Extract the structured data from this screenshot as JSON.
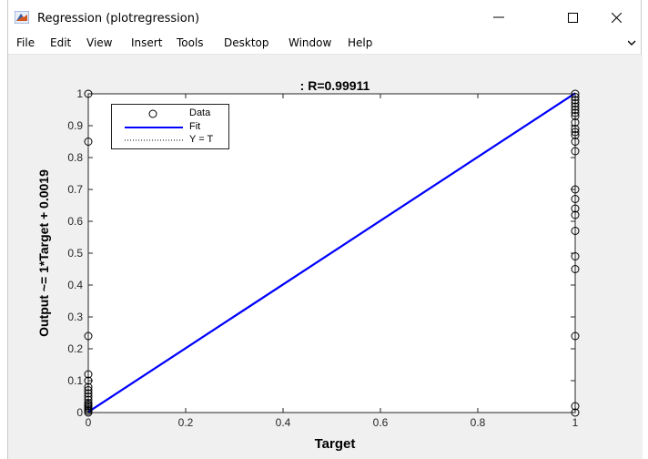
{
  "window": {
    "title": "Regression (plotregression)",
    "controls": {
      "minimize": "—",
      "maximize": "☐",
      "close": "✕"
    }
  },
  "menu": {
    "items": [
      "File",
      "Edit",
      "View",
      "Insert",
      "Tools",
      "Desktop",
      "Window",
      "Help"
    ]
  },
  "colors": {
    "fit_line": "#0000ff",
    "data_marker": "#000000",
    "axes_background": "#ffffff",
    "figure_background": "#f0f0f0"
  },
  "icons": {
    "app": "matlab-icon",
    "dock": "dock-arrow-icon"
  },
  "chart_data": {
    "type": "scatter",
    "title": ": R=0.99911",
    "xlabel": "Target",
    "ylabel": "Output ~= 1*Target + 0.0019",
    "xlim": [
      0,
      1
    ],
    "ylim": [
      0,
      1
    ],
    "xticks": [
      0,
      0.2,
      0.4,
      0.6,
      0.8,
      1
    ],
    "xtick_labels": [
      "0",
      "0.2",
      "0.4",
      "0.6",
      "0.8",
      "1"
    ],
    "yticks": [
      0,
      0.1,
      0.2,
      0.3,
      0.4,
      0.5,
      0.6,
      0.7,
      0.8,
      0.9,
      1
    ],
    "ytick_labels": [
      "0",
      "0.1",
      "0.2",
      "0.3",
      "0.4",
      "0.5",
      "0.6",
      "0.7",
      "0.8",
      "0.9",
      "1"
    ],
    "grid": false,
    "legend_position": "top-left",
    "legend": [
      {
        "label": "Data",
        "style": "circle-marker"
      },
      {
        "label": "Fit",
        "style": "solid-line"
      },
      {
        "label": "Y = T",
        "style": "dotted-line"
      }
    ],
    "fit_line": {
      "slope": 1,
      "intercept": 0.0019
    },
    "identity_line": {
      "slope": 1,
      "intercept": 0
    },
    "series": [
      {
        "name": "Data",
        "points": [
          [
            0,
            0
          ],
          [
            0,
            0.005
          ],
          [
            0,
            0.01
          ],
          [
            0,
            0.015
          ],
          [
            0,
            0.02
          ],
          [
            0,
            0.025
          ],
          [
            0,
            0.03
          ],
          [
            0,
            0.04
          ],
          [
            0,
            0.05
          ],
          [
            0,
            0.06
          ],
          [
            0,
            0.07
          ],
          [
            0,
            0.08
          ],
          [
            0,
            0.1
          ],
          [
            0,
            0.12
          ],
          [
            0,
            0.24
          ],
          [
            0,
            0.85
          ],
          [
            0,
            1.0
          ],
          [
            1,
            0.0
          ],
          [
            1,
            0.02
          ],
          [
            1,
            0.24
          ],
          [
            1,
            0.45
          ],
          [
            1,
            0.49
          ],
          [
            1,
            0.57
          ],
          [
            1,
            0.62
          ],
          [
            1,
            0.64
          ],
          [
            1,
            0.67
          ],
          [
            1,
            0.7
          ],
          [
            1,
            0.82
          ],
          [
            1,
            0.85
          ],
          [
            1,
            0.87
          ],
          [
            1,
            0.88
          ],
          [
            1,
            0.89
          ],
          [
            1,
            0.91
          ],
          [
            1,
            0.93
          ],
          [
            1,
            0.94
          ],
          [
            1,
            0.95
          ],
          [
            1,
            0.96
          ],
          [
            1,
            0.97
          ],
          [
            1,
            0.98
          ],
          [
            1,
            0.99
          ],
          [
            1,
            1.0
          ]
        ]
      }
    ]
  }
}
